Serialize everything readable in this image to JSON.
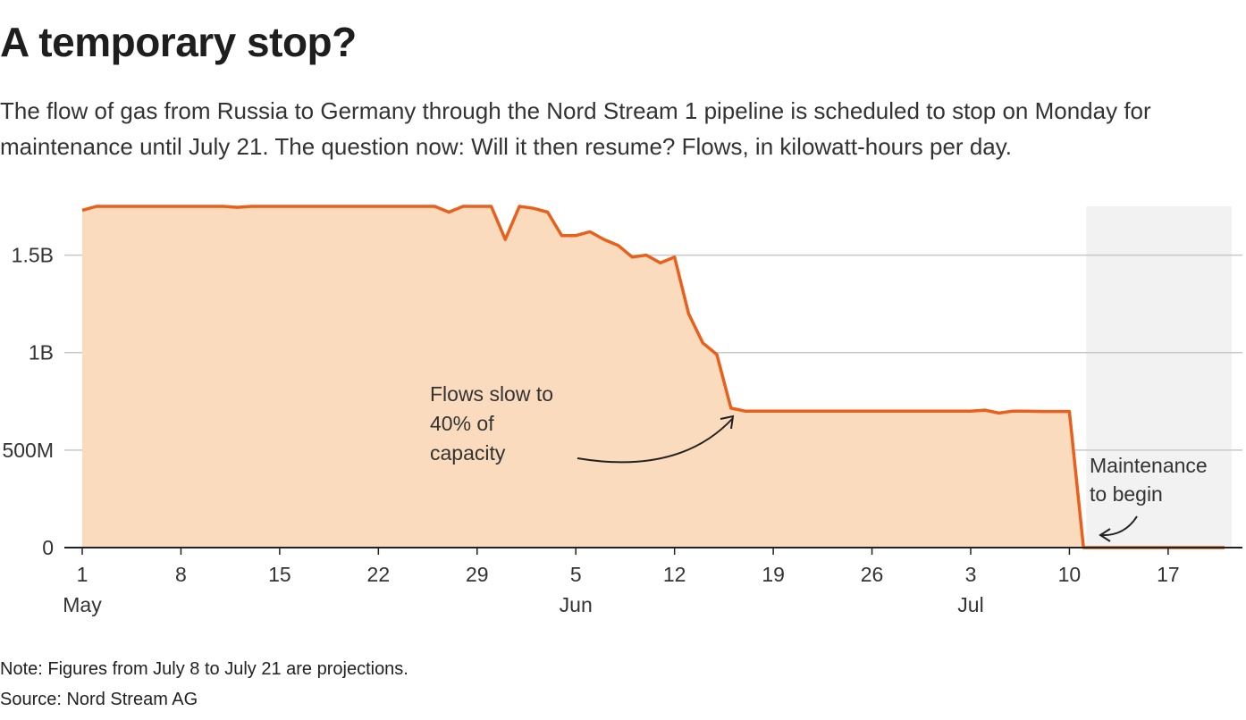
{
  "title": "A temporary stop?",
  "subtitle": "The flow of gas from Russia to Germany through the Nord Stream 1 pipeline is scheduled to stop on Monday for maintenance until July 21. The question now: Will it then resume? Flows, in kilowatt-hours per day.",
  "note": "Note: Figures from July 8 to July 21 are projections.",
  "source": "Source: Nord Stream AG",
  "colors": {
    "line": "#e8601c",
    "area": "#fbdbbd",
    "shade": "#f2f2f2",
    "grid": "#c8c8c8",
    "axis": "#222222"
  },
  "chart_data": {
    "type": "area",
    "x_start": "2022-05-01",
    "x_end": "2022-07-21",
    "ylim": [
      0,
      1750000000
    ],
    "grid": true,
    "y_ticks": [
      {
        "value": 0,
        "label": "0"
      },
      {
        "value": 500000000,
        "label": "500M"
      },
      {
        "value": 1000000000,
        "label": "1B"
      },
      {
        "value": 1500000000,
        "label": "1.5B"
      }
    ],
    "x_ticks": [
      {
        "date": "2022-05-01",
        "label": "1",
        "month": "May"
      },
      {
        "date": "2022-05-08",
        "label": "8",
        "month": ""
      },
      {
        "date": "2022-05-15",
        "label": "15",
        "month": ""
      },
      {
        "date": "2022-05-22",
        "label": "22",
        "month": ""
      },
      {
        "date": "2022-05-29",
        "label": "29",
        "month": ""
      },
      {
        "date": "2022-06-05",
        "label": "5",
        "month": "Jun"
      },
      {
        "date": "2022-06-12",
        "label": "12",
        "month": ""
      },
      {
        "date": "2022-06-19",
        "label": "19",
        "month": ""
      },
      {
        "date": "2022-06-26",
        "label": "26",
        "month": ""
      },
      {
        "date": "2022-07-03",
        "label": "3",
        "month": "Jul"
      },
      {
        "date": "2022-07-10",
        "label": "10",
        "month": ""
      },
      {
        "date": "2022-07-17",
        "label": "17",
        "month": ""
      }
    ],
    "shaded_region": {
      "start": "2022-07-11",
      "end": "2022-07-21"
    },
    "series": [
      {
        "values": [
          [
            "2022-05-01",
            1730000000
          ],
          [
            "2022-05-02",
            1750000000
          ],
          [
            "2022-05-03",
            1750000000
          ],
          [
            "2022-05-04",
            1750000000
          ],
          [
            "2022-05-05",
            1750000000
          ],
          [
            "2022-05-06",
            1750000000
          ],
          [
            "2022-05-07",
            1750000000
          ],
          [
            "2022-05-08",
            1750000000
          ],
          [
            "2022-05-09",
            1750000000
          ],
          [
            "2022-05-10",
            1750000000
          ],
          [
            "2022-05-11",
            1750000000
          ],
          [
            "2022-05-12",
            1745000000
          ],
          [
            "2022-05-13",
            1750000000
          ],
          [
            "2022-05-14",
            1750000000
          ],
          [
            "2022-05-15",
            1750000000
          ],
          [
            "2022-05-16",
            1750000000
          ],
          [
            "2022-05-17",
            1750000000
          ],
          [
            "2022-05-18",
            1750000000
          ],
          [
            "2022-05-19",
            1750000000
          ],
          [
            "2022-05-20",
            1750000000
          ],
          [
            "2022-05-21",
            1750000000
          ],
          [
            "2022-05-22",
            1750000000
          ],
          [
            "2022-05-23",
            1750000000
          ],
          [
            "2022-05-24",
            1750000000
          ],
          [
            "2022-05-25",
            1750000000
          ],
          [
            "2022-05-26",
            1750000000
          ],
          [
            "2022-05-27",
            1720000000
          ],
          [
            "2022-05-28",
            1750000000
          ],
          [
            "2022-05-29",
            1750000000
          ],
          [
            "2022-05-30",
            1750000000
          ],
          [
            "2022-05-31",
            1580000000
          ],
          [
            "2022-06-01",
            1750000000
          ],
          [
            "2022-06-02",
            1740000000
          ],
          [
            "2022-06-03",
            1720000000
          ],
          [
            "2022-06-04",
            1600000000
          ],
          [
            "2022-06-05",
            1600000000
          ],
          [
            "2022-06-06",
            1620000000
          ],
          [
            "2022-06-07",
            1580000000
          ],
          [
            "2022-06-08",
            1550000000
          ],
          [
            "2022-06-09",
            1490000000
          ],
          [
            "2022-06-10",
            1500000000
          ],
          [
            "2022-06-11",
            1460000000
          ],
          [
            "2022-06-12",
            1490000000
          ],
          [
            "2022-06-13",
            1200000000
          ],
          [
            "2022-06-14",
            1050000000
          ],
          [
            "2022-06-15",
            990000000
          ],
          [
            "2022-06-16",
            715000000
          ],
          [
            "2022-06-17",
            700000000
          ],
          [
            "2022-06-18",
            700000000
          ],
          [
            "2022-06-19",
            700000000
          ],
          [
            "2022-06-20",
            700000000
          ],
          [
            "2022-06-21",
            700000000
          ],
          [
            "2022-06-22",
            700000000
          ],
          [
            "2022-06-23",
            700000000
          ],
          [
            "2022-06-24",
            700000000
          ],
          [
            "2022-06-25",
            700000000
          ],
          [
            "2022-06-26",
            700000000
          ],
          [
            "2022-06-27",
            700000000
          ],
          [
            "2022-06-28",
            700000000
          ],
          [
            "2022-06-29",
            700000000
          ],
          [
            "2022-06-30",
            700000000
          ],
          [
            "2022-07-01",
            700000000
          ],
          [
            "2022-07-02",
            700000000
          ],
          [
            "2022-07-03",
            700000000
          ],
          [
            "2022-07-04",
            705000000
          ],
          [
            "2022-07-05",
            690000000
          ],
          [
            "2022-07-06",
            700000000
          ],
          [
            "2022-07-07",
            700000000
          ],
          [
            "2022-07-08",
            698000000
          ],
          [
            "2022-07-09",
            698000000
          ],
          [
            "2022-07-10",
            698000000
          ],
          [
            "2022-07-11",
            0
          ],
          [
            "2022-07-12",
            0
          ],
          [
            "2022-07-13",
            0
          ],
          [
            "2022-07-14",
            0
          ],
          [
            "2022-07-15",
            0
          ],
          [
            "2022-07-16",
            0
          ],
          [
            "2022-07-17",
            0
          ],
          [
            "2022-07-18",
            0
          ],
          [
            "2022-07-19",
            0
          ],
          [
            "2022-07-20",
            0
          ],
          [
            "2022-07-21",
            0
          ]
        ]
      }
    ],
    "annotations": [
      {
        "lines": [
          "Flows slow to",
          "40% of",
          "capacity"
        ],
        "arrow_to": "2022-06-17"
      },
      {
        "lines": [
          "Maintenance",
          "to begin"
        ],
        "arrow_to": "2022-07-12"
      }
    ]
  }
}
